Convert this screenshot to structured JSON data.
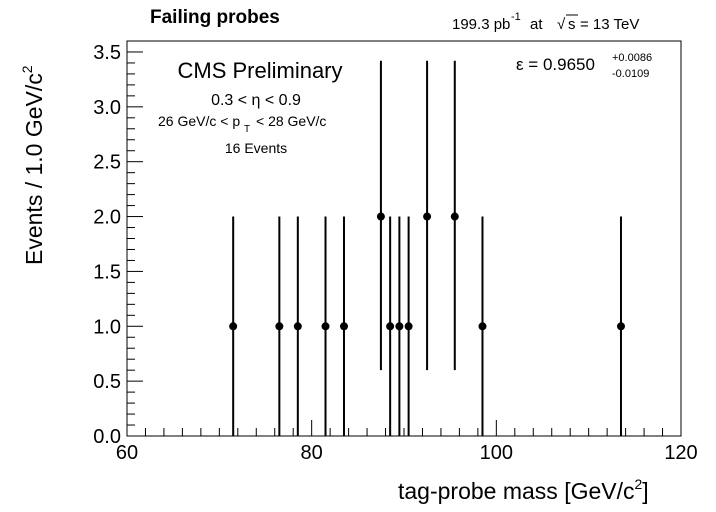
{
  "header": {
    "title": "Failing probes",
    "lumi_value": "199.3 pb",
    "lumi_exp": "-1",
    "lumi_at": "at",
    "sqrt_symbol": "√",
    "sqrt_s": "s",
    "energy": "= 13 TeV"
  },
  "annotations": {
    "experiment": "CMS Preliminary",
    "eta_cut": "0.3 < η < 0.9",
    "pt_cut_left": "26 GeV/c < p",
    "pt_cut_sub": "T",
    "pt_cut_right": "< 28 GeV/c",
    "events": "16 Events",
    "efficiency": "ε = 0.9650",
    "eff_up": "+0.0086",
    "eff_down": "-0.0109"
  },
  "axes": {
    "ylabel_main": "Events / 1.0 GeV/c",
    "ylabel_sup": "2",
    "xlabel_main": "tag-probe mass [GeV/c",
    "xlabel_sup": "2",
    "xlabel_close": "]"
  },
  "chart_data": {
    "type": "scatter",
    "title": "Failing probes",
    "xlabel": "tag-probe mass [GeV/c2]",
    "ylabel": "Events / 1.0 GeV/c2",
    "xlim": [
      60,
      120
    ],
    "ylim": [
      0,
      3.6
    ],
    "x_major_ticks": [
      60,
      80,
      100,
      120
    ],
    "x_tick_labels": [
      "60",
      "80",
      "100",
      "120"
    ],
    "y_major_ticks": [
      0,
      0.5,
      1.0,
      1.5,
      2.0,
      2.5,
      3.0,
      3.5
    ],
    "y_tick_labels": [
      "0.0",
      "0.5",
      "1.0",
      "1.5",
      "2.0",
      "2.5",
      "3.0",
      "3.5"
    ],
    "grid": false,
    "series": [
      {
        "points": [
          {
            "x": 71.5,
            "y": 1,
            "err_low": 0,
            "err_high": 2.0
          },
          {
            "x": 76.5,
            "y": 1,
            "err_low": 0,
            "err_high": 2.0
          },
          {
            "x": 78.5,
            "y": 1,
            "err_low": 0,
            "err_high": 2.0
          },
          {
            "x": 81.5,
            "y": 1,
            "err_low": 0,
            "err_high": 2.0
          },
          {
            "x": 83.5,
            "y": 1,
            "err_low": 0,
            "err_high": 2.0
          },
          {
            "x": 87.5,
            "y": 2,
            "err_low": 0.6,
            "err_high": 3.42
          },
          {
            "x": 88.5,
            "y": 1,
            "err_low": 0,
            "err_high": 2.0
          },
          {
            "x": 89.5,
            "y": 1,
            "err_low": 0,
            "err_high": 2.0
          },
          {
            "x": 90.5,
            "y": 1,
            "err_low": 0,
            "err_high": 2.0
          },
          {
            "x": 92.5,
            "y": 2,
            "err_low": 0.6,
            "err_high": 3.42
          },
          {
            "x": 95.5,
            "y": 2,
            "err_low": 0.6,
            "err_high": 3.42
          },
          {
            "x": 98.5,
            "y": 1,
            "err_low": 0,
            "err_high": 2.0
          },
          {
            "x": 113.5,
            "y": 1,
            "err_low": 0,
            "err_high": 2.0
          }
        ]
      }
    ]
  }
}
